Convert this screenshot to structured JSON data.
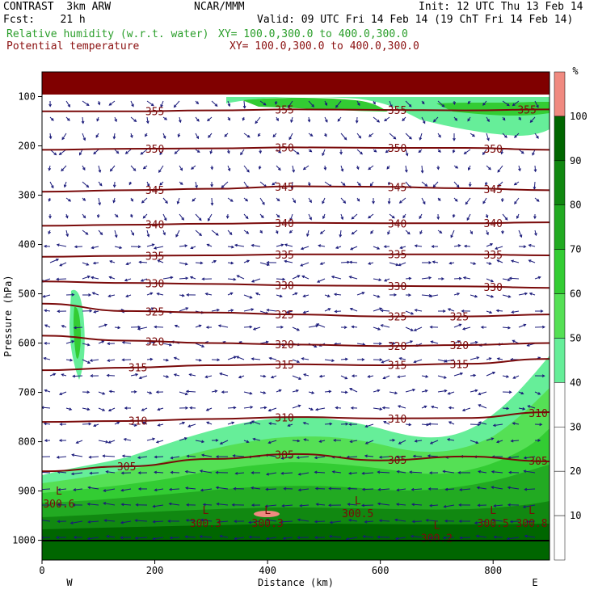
{
  "header": {
    "title": "CONTRAST  3km ARW",
    "center": "NCAR/MMM",
    "init": "Init: 12 UTC Thu 13 Feb 14",
    "fcst": "Fcst:    21 h",
    "valid": "Valid: 09 UTC Fri 14 Feb 14 (19 ChT Fri 14 Feb 14)",
    "field1": "Relative humidity (w.r.t. water)",
    "field1_xy": "XY= 100.0,300.0 to 400.0,300.0",
    "field2": "Potential temperature",
    "field2_xy": "XY= 100.0,300.0 to 400.0,300.0"
  },
  "colors": {
    "rh_50": "#66ee99",
    "rh_60": "#55e055",
    "rh_70": "#33cc33",
    "rh_80": "#22aa22",
    "rh_90": "#118811",
    "rh_100": "#006600",
    "rh_max": "#f08a80",
    "theta_line": "#7a0a0a",
    "wind": "#1a1a7a"
  },
  "chart_data": {
    "type": "cross-section",
    "xlabel": "Distance (km)",
    "ylabel": "Pressure (hPa)",
    "xlim": [
      0,
      900
    ],
    "ylim": [
      1040,
      50
    ],
    "x_ticks": [
      0,
      200,
      400,
      600,
      800
    ],
    "y_ticks": [
      100,
      200,
      300,
      400,
      500,
      600,
      700,
      800,
      900,
      1000
    ],
    "x_ends": {
      "left": "W",
      "right": "E"
    },
    "colorbar": {
      "unit": "%",
      "levels": [
        10,
        20,
        30,
        40,
        50,
        60,
        70,
        80,
        90,
        100
      ],
      "filled_from": 50
    },
    "theta_contours": [
      {
        "value": 355,
        "label": "355",
        "p": [
          130,
          130,
          128,
          126,
          127,
          128,
          126
        ],
        "labels_at": [
          200,
          430,
          630,
          860
        ]
      },
      {
        "value": 350,
        "label": "350",
        "p": [
          208,
          206,
          205,
          203,
          204,
          204,
          208
        ],
        "labels_at": [
          200,
          430,
          630,
          800
        ]
      },
      {
        "value": 345,
        "label": "345",
        "p": [
          293,
          290,
          287,
          282,
          283,
          286,
          290
        ],
        "labels_at": [
          200,
          430,
          630,
          800
        ]
      },
      {
        "value": 340,
        "label": "340",
        "p": [
          362,
          360,
          358,
          356,
          357,
          357,
          355
        ],
        "labels_at": [
          200,
          430,
          630,
          800
        ]
      },
      {
        "value": 335,
        "label": "335",
        "p": [
          425,
          423,
          422,
          420,
          420,
          420,
          422
        ],
        "labels_at": [
          200,
          430,
          630,
          800
        ]
      },
      {
        "value": 330,
        "label": "330",
        "p": [
          475,
          478,
          480,
          483,
          484,
          485,
          488
        ],
        "labels_at": [
          200,
          430,
          630,
          800
        ]
      },
      {
        "value": 325,
        "label": "325",
        "p": [
          520,
          535,
          538,
          542,
          546,
          546,
          542
        ],
        "labels_at": [
          200,
          430,
          630,
          740
        ]
      },
      {
        "value": 320,
        "label": "320",
        "p": [
          585,
          595,
          600,
          603,
          606,
          604,
          600
        ],
        "labels_at": [
          200,
          430,
          630,
          740
        ]
      },
      {
        "value": 315,
        "label": "315",
        "p": [
          655,
          650,
          645,
          643,
          645,
          642,
          632
        ],
        "labels_at": [
          170,
          430,
          630,
          740
        ]
      },
      {
        "value": 310,
        "label": "310",
        "p": [
          760,
          758,
          754,
          750,
          753,
          752,
          740
        ],
        "labels_at": [
          170,
          430,
          630,
          880
        ]
      },
      {
        "value": 305,
        "label": "305",
        "p": [
          860,
          850,
          835,
          825,
          838,
          830,
          840
        ],
        "labels_at": [
          150,
          430,
          630,
          880
        ]
      }
    ],
    "lows": [
      {
        "x": 30,
        "p": 920,
        "label": "L",
        "value": "300.6"
      },
      {
        "x": 290,
        "p": 960,
        "label": "L",
        "value": "300.3"
      },
      {
        "x": 400,
        "p": 960,
        "label": "L",
        "value": "300.3"
      },
      {
        "x": 560,
        "p": 940,
        "label": "L",
        "value": "300.5"
      },
      {
        "x": 700,
        "p": 990,
        "label": "L",
        "value": "300.2"
      },
      {
        "x": 800,
        "p": 960,
        "label": "L",
        "value": "300.5"
      },
      {
        "x": 890,
        "p": 960,
        "label": "L",
        "value": "300.8"
      }
    ]
  }
}
